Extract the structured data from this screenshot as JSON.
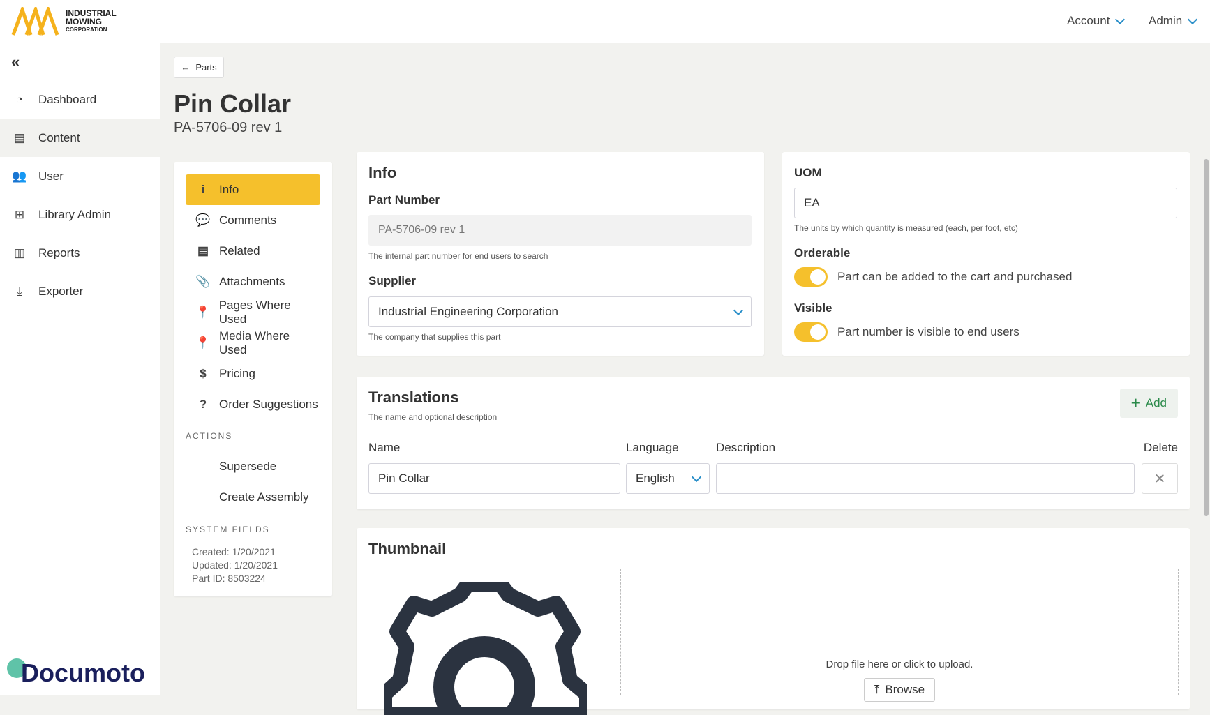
{
  "header": {
    "logo_lines": [
      "INDUSTRIAL",
      "MOWING",
      "CORPORATION"
    ],
    "account": "Account",
    "admin": "Admin",
    "accent": "#f5c02c"
  },
  "sidebar": {
    "collapse": "«",
    "items": [
      {
        "label": "Dashboard",
        "icon": "gauge-icon",
        "glyph": "◔"
      },
      {
        "label": "Content",
        "icon": "book-icon",
        "glyph": "▤"
      },
      {
        "label": "User",
        "icon": "users-icon",
        "glyph": "👥"
      },
      {
        "label": "Library Admin",
        "icon": "sitemap-icon",
        "glyph": "⊞"
      },
      {
        "label": "Reports",
        "icon": "bar-chart-icon",
        "glyph": "▥"
      },
      {
        "label": "Exporter",
        "icon": "download-icon",
        "glyph": "⤓"
      }
    ],
    "footer_logo": "Documoto"
  },
  "page": {
    "back": "Parts",
    "title": "Pin Collar",
    "subtitle": "PA-5706-09 rev 1"
  },
  "leftnav": {
    "items": [
      {
        "label": "Info",
        "glyph": "i",
        "icon": "info-icon"
      },
      {
        "label": "Comments",
        "glyph": "💬",
        "icon": "comments-icon"
      },
      {
        "label": "Related",
        "glyph": "▤",
        "icon": "book-icon"
      },
      {
        "label": "Attachments",
        "glyph": "📎",
        "icon": "paperclip-icon"
      },
      {
        "label": "Pages Where Used",
        "glyph": "📍",
        "icon": "map-marker-icon"
      },
      {
        "label": "Media Where Used",
        "glyph": "📍",
        "icon": "map-marker-icon"
      },
      {
        "label": "Pricing",
        "glyph": "$",
        "icon": "dollar-icon"
      },
      {
        "label": "Order Suggestions",
        "glyph": "?",
        "icon": "question-icon"
      }
    ],
    "actions_title": "ACTIONS",
    "actions": [
      "Supersede",
      "Create Assembly"
    ],
    "system_title": "SYSTEM FIELDS",
    "created": "Created: 1/20/2021",
    "updated": "Updated: 1/20/2021",
    "part_id": "Part ID: 8503224"
  },
  "info": {
    "title": "Info",
    "part_number_label": "Part Number",
    "part_number": "PA-5706-09 rev 1",
    "part_number_hint": "The internal part number for end users to search",
    "supplier_label": "Supplier",
    "supplier": "Industrial Engineering Corporation",
    "supplier_hint": "The company that supplies this part"
  },
  "uom": {
    "label": "UOM",
    "value": "EA",
    "hint": "The units by which quantity is measured (each, per foot, etc)",
    "orderable_label": "Orderable",
    "orderable_text": "Part can be added to the cart and purchased",
    "orderable": true,
    "visible_label": "Visible",
    "visible_text": "Part number is visible to end users",
    "visible": true
  },
  "translations": {
    "title": "Translations",
    "hint": "The name and optional description",
    "add": "Add",
    "columns": [
      "Name",
      "Language",
      "Description",
      "Delete"
    ],
    "rows": [
      {
        "name": "Pin Collar",
        "language": "English",
        "description": ""
      }
    ]
  },
  "thumbnail": {
    "title": "Thumbnail",
    "drop_text": "Drop file here or click to upload.",
    "browse": "Browse"
  }
}
